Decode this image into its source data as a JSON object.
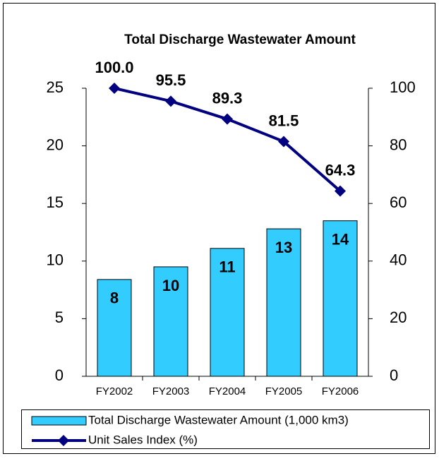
{
  "chart_data": {
    "type": "bar-line",
    "title": "Total Discharge Wastewater Amount",
    "categories": [
      "FY2002",
      "FY2003",
      "FY2004",
      "FY2005",
      "FY2006"
    ],
    "series": [
      {
        "name": "Total Discharge Wastewater Amount (1,000 km3)",
        "type": "bar",
        "color": "#33ccff",
        "values": [
          8.4,
          9.5,
          11.1,
          12.8,
          13.5
        ],
        "value_labels": [
          "8",
          "10",
          "11",
          "13",
          "14"
        ]
      },
      {
        "name": "Unit Sales Index (%)",
        "type": "line",
        "axis": "y2",
        "color": "#000080",
        "values": [
          100.0,
          95.5,
          89.3,
          81.5,
          64.3
        ],
        "value_labels": [
          "100.0",
          "95.5",
          "89.3",
          "81.5",
          "64.3"
        ]
      }
    ],
    "ylim": [
      0,
      25
    ],
    "yticks": [
      0,
      5,
      10,
      15,
      20,
      25
    ],
    "y2lim": [
      0,
      100
    ],
    "y2ticks": [
      0,
      20,
      40,
      60,
      80,
      100
    ],
    "legend": "bottom"
  }
}
